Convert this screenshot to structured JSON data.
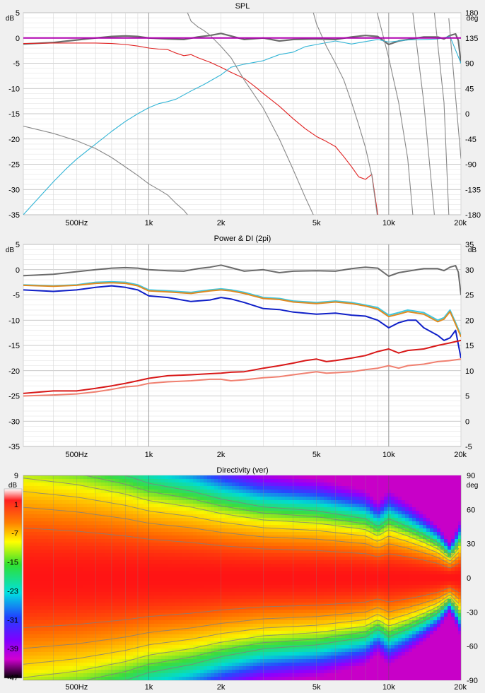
{
  "x_axis": {
    "min_hz": 300,
    "max_hz": 20000,
    "scale": "log",
    "tick_hz": [
      500,
      1000,
      2000,
      5000,
      10000,
      20000
    ],
    "tick_labels": [
      "500Hz",
      "1k",
      "2k",
      "5k",
      "10k",
      "20k"
    ]
  },
  "chart_data": [
    {
      "type": "line",
      "title": "SPL",
      "left_unit": "dB",
      "right_unit": "deg",
      "ylim": [
        -35,
        5
      ],
      "y2lim": [
        -180,
        180
      ],
      "y_ticks": [
        5,
        0,
        -5,
        -10,
        -15,
        -20,
        -25,
        -30,
        -35
      ],
      "y2_ticks": [
        180,
        135,
        90,
        45,
        0,
        -45,
        -90,
        -135,
        -180
      ],
      "reference_level": 0,
      "series": [
        {
          "role": "spl-on-axis",
          "color": "#6b6b6b",
          "axis": "left",
          "x": [
            300,
            400,
            500,
            600,
            700,
            800,
            900,
            1000,
            1200,
            1400,
            1600,
            1800,
            2000,
            2200,
            2500,
            3000,
            3500,
            4000,
            5000,
            6000,
            7000,
            8000,
            9000,
            10000,
            11000,
            12000,
            14000,
            16000,
            17000,
            18000,
            19000,
            19500,
            20000
          ],
          "y": [
            -1.2,
            -0.9,
            -0.4,
            0.0,
            0.3,
            0.4,
            0.3,
            0.0,
            -0.2,
            -0.3,
            0.2,
            0.5,
            0.9,
            0.4,
            -0.3,
            0.0,
            -0.6,
            -0.3,
            -0.2,
            -0.3,
            0.2,
            0.5,
            0.3,
            -1.3,
            -0.6,
            -0.3,
            0.2,
            0.2,
            -0.2,
            0.5,
            0.8,
            -0.5,
            -5.0
          ]
        },
        {
          "role": "lowpass-branch",
          "color": "#e02020",
          "axis": "left",
          "x": [
            300,
            400,
            500,
            600,
            700,
            800,
            900,
            1000,
            1100,
            1200,
            1300,
            1400,
            1500,
            1600,
            1800,
            2000,
            2200,
            2500,
            2800,
            3000,
            3500,
            4000,
            4500,
            5000,
            5500,
            6000,
            6500,
            7000,
            7500,
            8000,
            8500,
            9000
          ],
          "y": [
            -1.1,
            -1.0,
            -1.0,
            -1.0,
            -1.1,
            -1.3,
            -1.6,
            -2.0,
            -2.2,
            -2.3,
            -3.0,
            -3.5,
            -3.3,
            -3.9,
            -4.8,
            -5.8,
            -6.8,
            -8.0,
            -9.8,
            -11.0,
            -13.5,
            -16.0,
            -18.0,
            -19.5,
            -20.5,
            -21.5,
            -23.5,
            -25.5,
            -27.5,
            -28.0,
            -27.0,
            -35.0
          ]
        },
        {
          "role": "highpass-branch",
          "color": "#33b5d6",
          "axis": "left",
          "x": [
            300,
            350,
            400,
            450,
            500,
            600,
            700,
            800,
            900,
            1000,
            1100,
            1200,
            1300,
            1500,
            1700,
            2000,
            2200,
            2500,
            3000,
            3500,
            4000,
            4500,
            5000,
            6000,
            7000,
            8000,
            9000,
            10000,
            12000,
            14000,
            16000,
            18000,
            20000
          ],
          "y": [
            -35.0,
            -31.5,
            -28.5,
            -26.0,
            -24.0,
            -21.0,
            -18.5,
            -16.5,
            -15.0,
            -13.8,
            -13.0,
            -12.6,
            -12.1,
            -10.5,
            -9.2,
            -7.3,
            -5.8,
            -5.2,
            -4.5,
            -3.3,
            -2.8,
            -1.7,
            -1.3,
            -0.6,
            -1.2,
            -0.7,
            -0.3,
            -0.8,
            -0.4,
            -0.3,
            -0.2,
            0.3,
            -5.0
          ]
        },
        {
          "role": "phase",
          "color": "#888888",
          "axis": "right",
          "segments": [
            {
              "x": [
                300,
                400,
                500,
                600,
                700,
                800,
                900,
                1000,
                1100,
                1200,
                1300,
                1400,
                1450
              ],
              "y": [
                -22,
                -35,
                -48,
                -62,
                -78,
                -95,
                -110,
                -125,
                -135,
                -145,
                -160,
                -172,
                -180
              ]
            },
            {
              "x": [
                1450,
                1500,
                1600,
                1700,
                1800,
                2000,
                2200,
                2500,
                3000,
                3500,
                4000,
                4500,
                4850
              ],
              "y": [
                180,
                165,
                155,
                148,
                140,
                120,
                100,
                60,
                10,
                -45,
                -100,
                -150,
                -180
              ]
            },
            {
              "x": [
                4850,
                5000,
                5500,
                6000,
                6500,
                7000,
                7500,
                8000,
                8500,
                8950
              ],
              "y": [
                180,
                160,
                120,
                90,
                60,
                20,
                -20,
                -60,
                -110,
                -180
              ]
            },
            {
              "x": [
                8950,
                10000,
                11000,
                12000,
                12600
              ],
              "y": [
                180,
                100,
                20,
                -80,
                -180
              ]
            },
            {
              "x": [
                12600,
                14000,
                15500
              ],
              "y": [
                180,
                20,
                -180
              ]
            },
            {
              "x": [
                15500,
                17000,
                17800
              ],
              "y": [
                180,
                20,
                -180
              ]
            },
            {
              "x": [
                17800,
                19000,
                20000
              ],
              "y": [
                170,
                30,
                -80
              ]
            }
          ]
        },
        {
          "role": "reference-line",
          "color": "#b000b0",
          "axis": "left",
          "x": [
            300,
            20000
          ],
          "y": [
            0,
            0
          ]
        }
      ]
    },
    {
      "type": "line",
      "title": "Power & DI (2pi)",
      "left_unit": "dB",
      "right_unit": "dB",
      "ylim": [
        -35,
        5
      ],
      "y2lim": [
        -5,
        35
      ],
      "y_ticks": [
        5,
        0,
        -5,
        -10,
        -15,
        -20,
        -25,
        -30,
        -35
      ],
      "y2_ticks": [
        35,
        30,
        25,
        20,
        15,
        10,
        5,
        0,
        -5
      ],
      "series": [
        {
          "role": "on-axis",
          "color": "#6b6b6b",
          "axis": "left",
          "x": [
            300,
            400,
            500,
            600,
            700,
            800,
            900,
            1000,
            1200,
            1400,
            1600,
            1800,
            2000,
            2200,
            2500,
            3000,
            3500,
            4000,
            5000,
            6000,
            7000,
            8000,
            9000,
            10000,
            11000,
            12000,
            14000,
            16000,
            17000,
            18000,
            19000,
            19500,
            20000
          ],
          "y": [
            -1.2,
            -0.9,
            -0.4,
            0.0,
            0.3,
            0.4,
            0.3,
            0.0,
            -0.2,
            -0.3,
            0.2,
            0.5,
            0.9,
            0.4,
            -0.3,
            0.0,
            -0.6,
            -0.3,
            -0.2,
            -0.3,
            0.2,
            0.5,
            0.3,
            -1.3,
            -0.6,
            -0.3,
            0.2,
            0.2,
            -0.2,
            0.5,
            0.8,
            -0.5,
            -5.0
          ]
        },
        {
          "role": "listening-window",
          "color": "#40c8e0",
          "axis": "left",
          "x": [
            300,
            400,
            500,
            600,
            700,
            800,
            900,
            1000,
            1200,
            1500,
            1800,
            2000,
            2200,
            2500,
            3000,
            3500,
            4000,
            5000,
            6000,
            7000,
            8000,
            9000,
            10000,
            11000,
            12000,
            14000,
            16000,
            17000,
            18000,
            19000,
            20000
          ],
          "y": [
            -3.0,
            -3.2,
            -3.0,
            -2.5,
            -2.4,
            -2.5,
            -3.0,
            -4.0,
            -4.2,
            -4.5,
            -4.0,
            -3.8,
            -4.0,
            -4.5,
            -5.5,
            -5.7,
            -6.2,
            -6.5,
            -6.2,
            -6.5,
            -7.0,
            -7.5,
            -9.0,
            -8.5,
            -8.0,
            -8.5,
            -10.0,
            -9.5,
            -8.0,
            -10.5,
            -13.0
          ]
        },
        {
          "role": "early-reflections",
          "color": "#e08a20",
          "axis": "left",
          "x": [
            300,
            400,
            500,
            600,
            700,
            800,
            900,
            1000,
            1200,
            1500,
            1800,
            2000,
            2200,
            2500,
            3000,
            3500,
            4000,
            5000,
            6000,
            7000,
            8000,
            9000,
            10000,
            11000,
            12000,
            14000,
            16000,
            17000,
            18000,
            19000,
            20000
          ],
          "y": [
            -3.1,
            -3.3,
            -3.1,
            -2.7,
            -2.6,
            -2.7,
            -3.2,
            -4.2,
            -4.4,
            -4.7,
            -4.2,
            -4.0,
            -4.2,
            -4.7,
            -5.7,
            -5.9,
            -6.4,
            -6.7,
            -6.4,
            -6.7,
            -7.2,
            -7.8,
            -9.3,
            -8.8,
            -8.3,
            -8.8,
            -10.3,
            -9.8,
            -8.3,
            -10.8,
            -13.3
          ]
        },
        {
          "role": "sound-power",
          "color": "#1020c8",
          "axis": "left",
          "x": [
            300,
            400,
            500,
            600,
            700,
            800,
            900,
            1000,
            1200,
            1500,
            1800,
            2000,
            2200,
            2500,
            3000,
            3500,
            4000,
            5000,
            6000,
            7000,
            8000,
            9000,
            10000,
            11000,
            12000,
            13000,
            14000,
            16000,
            17000,
            18000,
            19000,
            20000
          ],
          "y": [
            -4.0,
            -4.3,
            -4.0,
            -3.5,
            -3.2,
            -3.5,
            -4.0,
            -5.2,
            -5.5,
            -6.3,
            -6.0,
            -5.5,
            -5.8,
            -6.5,
            -7.7,
            -7.9,
            -8.4,
            -8.8,
            -8.6,
            -9.0,
            -9.2,
            -10.0,
            -11.5,
            -10.5,
            -10.0,
            -10.0,
            -11.5,
            -13.0,
            -14.0,
            -13.5,
            -12.0,
            -17.5
          ]
        },
        {
          "role": "di-early-reflections",
          "color": "#f08070",
          "axis": "right",
          "x": [
            300,
            400,
            500,
            600,
            700,
            800,
            900,
            1000,
            1200,
            1500,
            1800,
            2000,
            2200,
            2500,
            3000,
            3500,
            4000,
            4500,
            5000,
            5500,
            6000,
            7000,
            8000,
            9000,
            10000,
            11000,
            12000,
            14000,
            16000,
            18000,
            20000
          ],
          "y": [
            5.0,
            5.2,
            5.4,
            5.8,
            6.3,
            6.8,
            7.0,
            7.5,
            7.8,
            8.0,
            8.3,
            8.3,
            8.0,
            8.2,
            8.6,
            8.8,
            9.2,
            9.5,
            9.8,
            9.5,
            9.6,
            9.8,
            10.2,
            10.5,
            11.0,
            10.5,
            11.0,
            11.3,
            11.8,
            12.0,
            12.3
          ]
        },
        {
          "role": "di-sound-power",
          "color": "#d81818",
          "axis": "right",
          "x": [
            300,
            400,
            500,
            600,
            700,
            800,
            900,
            1000,
            1200,
            1500,
            1800,
            2000,
            2200,
            2500,
            3000,
            3500,
            4000,
            4500,
            5000,
            5500,
            6000,
            7000,
            8000,
            9000,
            10000,
            11000,
            12000,
            14000,
            16000,
            18000,
            20000
          ],
          "y": [
            5.5,
            6.0,
            6.0,
            6.5,
            7.0,
            7.5,
            8.0,
            8.5,
            9.0,
            9.2,
            9.4,
            9.5,
            9.7,
            9.8,
            10.5,
            11.0,
            11.5,
            12.0,
            12.3,
            11.8,
            12.0,
            12.5,
            13.0,
            13.8,
            14.3,
            13.5,
            14.0,
            14.3,
            15.0,
            15.5,
            16.0
          ]
        }
      ]
    },
    {
      "type": "heatmap",
      "title": "Directivity (ver)",
      "left_unit": "dB",
      "right_unit": "deg",
      "colorbar_ticks": [
        9,
        1,
        -7,
        -15,
        -23,
        -31,
        -39,
        -47
      ],
      "angle_ticks": [
        90,
        60,
        30,
        0,
        -30,
        -60,
        -90
      ],
      "angle_lim": [
        -90,
        90
      ],
      "beamwidth_knots": {
        "x": [
          300,
          500,
          800,
          1000,
          1500,
          2000,
          3000,
          5000,
          8000,
          9000,
          10000,
          12000,
          14000,
          16000,
          18000,
          20000
        ],
        "w": [
          62,
          58,
          52,
          48,
          44,
          40,
          36,
          34,
          30,
          26,
          30,
          26,
          22,
          18,
          12,
          20
        ]
      },
      "contour_levels_db": [
        -3,
        -6,
        -9,
        -12,
        -15,
        -18
      ]
    }
  ]
}
